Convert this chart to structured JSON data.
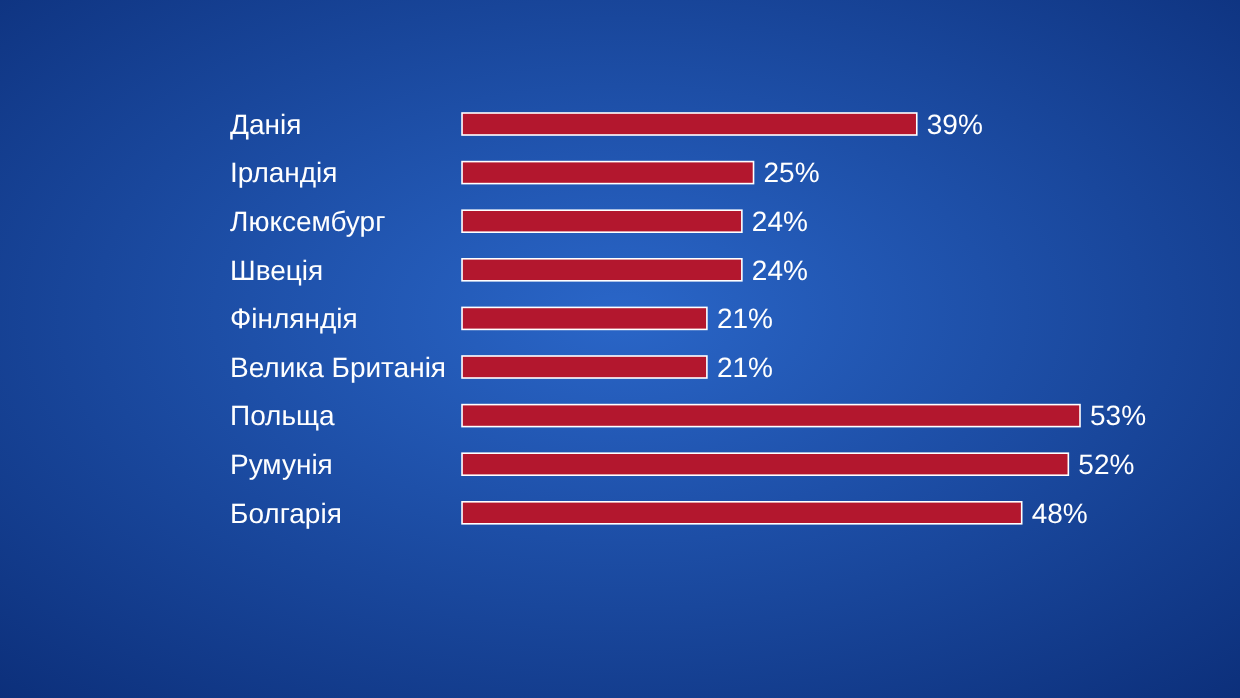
{
  "chart_data": {
    "type": "bar",
    "orientation": "horizontal",
    "categories": [
      "Данія",
      "Ірландія",
      "Люксембург",
      "Швеція",
      "Фінляндія",
      "Велика Британія",
      "Польща",
      "Румунія",
      "Болгарія"
    ],
    "values": [
      39,
      25,
      24,
      24,
      21,
      21,
      53,
      52,
      48
    ],
    "value_labels": [
      "39%",
      "25%",
      "24%",
      "24%",
      "21%",
      "21%",
      "53%",
      "52%",
      "48%"
    ],
    "color": "#b3172e"
  }
}
